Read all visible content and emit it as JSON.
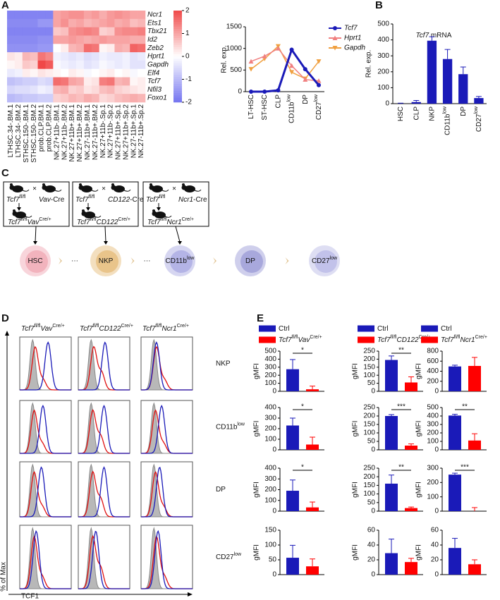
{
  "panel_labels": [
    "A",
    "B",
    "C",
    "D",
    "E"
  ],
  "chart_data": [
    {
      "type": "heatmap",
      "rows": [
        "Ncr1",
        "Ets1",
        "Tbx21",
        "Id2",
        "Zeb2",
        "Hprt1",
        "Gapdh",
        "Elf4",
        "Tcf7",
        "Nfil3",
        "Foxo1"
      ],
      "columns": [
        "LTHSC.34-.BM.1",
        "LTHSC.34-.BM.2",
        "STHSC.150-.BM.1",
        "STHSC.150-.BM.2",
        "prob.CLP.BM.1",
        "prob.CLP.BM.2",
        "NK.27+11b-.BM.1",
        "NK.27+11b-.BM.2",
        "NK.27+11b+.BM.1",
        "NK.27+11b+.BM.2",
        "NK.27-11b+.BM.1",
        "NK.27-11b+.BM.2",
        "NK.27+11b-.Sp.1",
        "NK.27+11b-.Sp.2",
        "NK.27+11b+.Sp.1",
        "NK.27+11b+.Sp.2",
        "NK.27-11b+.Sp.1",
        "NK.27-11b+.Sp.2"
      ],
      "values": [
        [
          -1.8,
          -1.8,
          -1.8,
          -1.8,
          -1.8,
          -1.8,
          1.0,
          1.1,
          1.2,
          1.2,
          1.0,
          1.1,
          0.9,
          1.1,
          1.2,
          1.1,
          1.0,
          1.0
        ],
        [
          -1.7,
          -1.7,
          -1.7,
          -1.7,
          -1.5,
          -1.5,
          1.0,
          1.2,
          0.9,
          1.0,
          0.8,
          0.9,
          1.0,
          1.1,
          0.9,
          1.0,
          0.7,
          0.8
        ],
        [
          -1.8,
          -1.8,
          -1.8,
          -1.8,
          -1.8,
          -1.8,
          0.6,
          0.7,
          1.2,
          1.3,
          1.4,
          1.3,
          0.5,
          0.6,
          1.2,
          1.3,
          1.3,
          1.4
        ],
        [
          -1.7,
          -1.7,
          -1.7,
          -1.7,
          -1.6,
          -1.6,
          1.0,
          1.0,
          1.1,
          1.0,
          0.9,
          1.0,
          1.1,
          1.0,
          1.0,
          1.0,
          0.9,
          0.9
        ],
        [
          -1.6,
          -1.6,
          -1.6,
          -1.6,
          -1.5,
          -1.5,
          0.0,
          0.2,
          0.8,
          0.9,
          1.6,
          1.5,
          0.1,
          0.2,
          0.9,
          0.8,
          1.7,
          1.6
        ],
        [
          0.3,
          0.2,
          0.8,
          0.7,
          1.5,
          1.3,
          -0.2,
          -0.3,
          -0.4,
          -0.3,
          -0.5,
          -0.4,
          -0.2,
          -0.3,
          -0.3,
          -0.2,
          -0.4,
          -0.3
        ],
        [
          0.1,
          0.2,
          0.6,
          0.5,
          2.0,
          1.8,
          -0.1,
          -0.2,
          -0.3,
          -0.2,
          -0.4,
          -0.3,
          -0.1,
          -0.2,
          -0.3,
          -0.2,
          -0.4,
          -0.4
        ],
        [
          -0.3,
          -0.2,
          0.2,
          0.1,
          0.3,
          0.2,
          0.1,
          0.0,
          0.2,
          0.1,
          -0.1,
          0.0,
          0.1,
          0.2,
          0.0,
          0.1,
          -0.1,
          0.0
        ],
        [
          -0.9,
          -0.8,
          -0.7,
          -0.7,
          -0.5,
          -0.6,
          1.6,
          1.5,
          1.0,
          0.9,
          0.2,
          0.3,
          1.4,
          1.5,
          0.8,
          0.9,
          0.1,
          0.2
        ],
        [
          -0.6,
          -0.5,
          -0.5,
          -0.4,
          -0.2,
          -0.3,
          0.8,
          0.9,
          0.5,
          0.6,
          0.3,
          0.4,
          0.7,
          0.8,
          0.5,
          0.4,
          0.3,
          0.2
        ],
        [
          -1.0,
          -0.9,
          -0.8,
          -0.8,
          -0.7,
          -0.7,
          0.5,
          0.6,
          0.8,
          0.7,
          0.9,
          0.8,
          0.4,
          0.5,
          0.7,
          0.8,
          0.9,
          0.8
        ]
      ],
      "zlim": [
        -2,
        2
      ],
      "colorbar_ticks": [
        2,
        1,
        0,
        -1,
        -2
      ],
      "colors": [
        "#7575f0",
        "#ffffff",
        "#f04848"
      ]
    },
    {
      "type": "line",
      "ylabel": "Rel. exp.",
      "categories": [
        "LT-HSC",
        "ST-HSC",
        "CLP",
        "CD11b",
        "DP",
        "CD27"
      ],
      "category_superscripts": [
        null,
        null,
        null,
        "low",
        null,
        "low"
      ],
      "ylim": [
        0,
        1500
      ],
      "yticks": [
        0,
        500,
        1000,
        1500
      ],
      "series": [
        {
          "name": "Tcf7",
          "color": "#1a1ab8",
          "marker": "circle",
          "values": [
            0,
            0,
            30,
            970,
            520,
            150
          ]
        },
        {
          "name": "Hprt1",
          "color": "#f08080",
          "marker": "triangle",
          "values": [
            700,
            820,
            1000,
            600,
            280,
            250
          ]
        },
        {
          "name": "Gapdh",
          "color": "#f0a040",
          "marker": "triangle-down",
          "values": [
            520,
            760,
            1050,
            450,
            300,
            700
          ]
        }
      ]
    },
    {
      "type": "bar",
      "title": [
        [
          "Tcf7",
          "i"
        ],
        [
          " mRNA",
          ""
        ]
      ],
      "ylabel": "Rel. exp.",
      "categories": [
        "HSC",
        "CLP",
        "NKP",
        "CD11b",
        "DP",
        "CD27"
      ],
      "category_superscripts": [
        null,
        null,
        null,
        "low",
        null,
        "low"
      ],
      "values": [
        0,
        10,
        395,
        280,
        185,
        35
      ],
      "errors": [
        3,
        10,
        25,
        60,
        45,
        10
      ],
      "color": "#1a1ab8",
      "ylim": [
        0,
        500
      ],
      "yticks": [
        0,
        100,
        200,
        300,
        400,
        500
      ]
    },
    {
      "type": "bar_panels",
      "ylabel": "gMFI",
      "columns": [
        {
          "legend": [
            {
              "name": [
                [
                  "Ctrl",
                  ""
                ]
              ],
              "color": "#1a1ab8"
            },
            {
              "name": [
                [
                  "Tcf7",
                  "i"
                ],
                [
                  "fl/fl",
                  "sup"
                ],
                [
                  "Vav",
                  "i"
                ],
                [
                  "Cre/+",
                  "sup"
                ]
              ],
              "color": "#ff0000"
            }
          ],
          "rows": [
            {
              "ylim": [
                0,
                500
              ],
              "yticks": [
                0,
                100,
                200,
                300,
                400,
                500
              ],
              "values": [
                275,
                25
              ],
              "errors": [
                120,
                40
              ],
              "significance": "*"
            },
            {
              "ylim": [
                0,
                400
              ],
              "yticks": [
                0,
                100,
                200,
                300,
                400
              ],
              "values": [
                230,
                50
              ],
              "errors": [
                70,
                70
              ],
              "significance": "*"
            },
            {
              "ylim": [
                0,
                400
              ],
              "yticks": [
                0,
                100,
                200,
                300,
                400
              ],
              "values": [
                190,
                35
              ],
              "errors": [
                100,
                50
              ],
              "significance": "*"
            },
            {
              "ylim": [
                0,
                150
              ],
              "yticks": [
                0,
                50,
                100,
                150
              ],
              "values": [
                57,
                28
              ],
              "errors": [
                42,
                25
              ]
            }
          ]
        },
        {
          "legend": [
            {
              "name": [
                [
                  "Ctrl",
                  ""
                ]
              ],
              "color": "#1a1ab8"
            },
            {
              "name": [
                [
                  "Tcf7",
                  "i"
                ],
                [
                  "fl/fl",
                  "sup"
                ],
                [
                  "CD122",
                  "i"
                ],
                [
                  "Cre/+",
                  "sup"
                ]
              ],
              "color": "#ff0000"
            }
          ],
          "rows": [
            {
              "ylim": [
                0,
                250
              ],
              "yticks": [
                0,
                50,
                100,
                150,
                200,
                250
              ],
              "values": [
                195,
                55
              ],
              "errors": [
                25,
                35
              ],
              "significance": "**"
            },
            {
              "ylim": [
                0,
                250
              ],
              "yticks": [
                0,
                50,
                100,
                150,
                200,
                250
              ],
              "values": [
                200,
                25
              ],
              "errors": [
                8,
                10
              ],
              "significance": "***"
            },
            {
              "ylim": [
                0,
                250
              ],
              "yticks": [
                0,
                50,
                100,
                150,
                200,
                250
              ],
              "values": [
                160,
                18
              ],
              "errors": [
                50,
                6
              ],
              "significance": "**"
            },
            {
              "ylim": [
                0,
                60
              ],
              "yticks": [
                0,
                20,
                40,
                60
              ],
              "values": [
                29,
                17
              ],
              "errors": [
                19,
                5
              ]
            }
          ]
        },
        {
          "legend": [
            {
              "name": [
                [
                  "Ctrl",
                  ""
                ]
              ],
              "color": "#1a1ab8"
            },
            {
              "name": [
                [
                  "Tcf7",
                  "i"
                ],
                [
                  "fl/fl",
                  "sup"
                ],
                [
                  "Ncr1",
                  "i"
                ],
                [
                  "Cre/+",
                  "sup"
                ]
              ],
              "color": "#ff0000"
            }
          ],
          "rows": [
            {
              "ylim": [
                0,
                800
              ],
              "yticks": [
                0,
                200,
                400,
                600,
                800
              ],
              "values": [
                495,
                505
              ],
              "errors": [
                25,
                170
              ]
            },
            {
              "ylim": [
                0,
                500
              ],
              "yticks": [
                0,
                100,
                200,
                300,
                400,
                500
              ],
              "values": [
                405,
                110
              ],
              "errors": [
                15,
                80
              ],
              "significance": "**"
            },
            {
              "ylim": [
                0,
                300
              ],
              "yticks": [
                0,
                100,
                200,
                300
              ],
              "values": [
                255,
                0
              ],
              "errors": [
                10,
                25
              ],
              "significance": "***"
            },
            {
              "ylim": [
                0,
                60
              ],
              "yticks": [
                0,
                20,
                40,
                60
              ],
              "values": [
                36,
                14
              ],
              "errors": [
                13,
                6
              ]
            }
          ]
        }
      ]
    }
  ],
  "diagram": {
    "cross": "×",
    "boxes": [
      {
        "left": [
          [
            "Tcf7",
            "i"
          ],
          [
            "fl/fl",
            "sup"
          ]
        ],
        "right": [
          [
            "Vav",
            "i"
          ],
          [
            "-Cre",
            ""
          ]
        ],
        "result": [
          [
            "Tcf7",
            "i"
          ],
          [
            "fl/fl",
            "sup"
          ],
          [
            "Vav",
            "i"
          ],
          [
            "Cre/+",
            "sup"
          ]
        ]
      },
      {
        "left": [
          [
            "Tcf7",
            "i"
          ],
          [
            "fl/fl",
            "sup"
          ]
        ],
        "right": [
          [
            "CD122",
            "i"
          ],
          [
            "-Cre",
            ""
          ]
        ],
        "result": [
          [
            "Tcf7",
            "i"
          ],
          [
            "fl/fl",
            "sup"
          ],
          [
            "CD122",
            "i"
          ],
          [
            "Cre/+",
            "sup"
          ]
        ]
      },
      {
        "left": [
          [
            "Tcf7",
            "i"
          ],
          [
            "fl/fl",
            "sup"
          ]
        ],
        "right": [
          [
            "Ncr1",
            "i"
          ],
          [
            "-Cre",
            ""
          ]
        ],
        "result": [
          [
            "Tcf7",
            "i"
          ],
          [
            "fl/fl",
            "sup"
          ],
          [
            "Ncr1",
            "i"
          ],
          [
            "Cre/+",
            "sup"
          ]
        ]
      }
    ],
    "cells": [
      {
        "label": [
          [
            "HSC",
            ""
          ]
        ],
        "color": "#f2b3bd"
      },
      {
        "label": [
          [
            "NKP",
            ""
          ]
        ],
        "color": "#e9c48a"
      },
      {
        "label": [
          [
            "CD11b",
            ""
          ],
          [
            "low",
            "sup"
          ]
        ],
        "color": "#b4b4e6"
      },
      {
        "label": [
          [
            "DP",
            ""
          ]
        ],
        "color": "#a8a8dc"
      },
      {
        "label": [
          [
            "CD27",
            ""
          ],
          [
            "low",
            "sup"
          ]
        ],
        "color": "#c2c2ea"
      }
    ],
    "ellipsis": "···"
  },
  "histograms": {
    "headers": [
      [
        [
          "Tcf7",
          "i"
        ],
        [
          "fl/fl",
          "sup"
        ],
        [
          "Vav",
          "i"
        ],
        [
          "Cre/+",
          "sup"
        ]
      ],
      [
        [
          "Tcf7",
          "i"
        ],
        [
          "fl/fl",
          "sup"
        ],
        [
          "CD122",
          "i"
        ],
        [
          "Cre/+",
          "sup"
        ]
      ],
      [
        [
          "Tcf7",
          "i"
        ],
        [
          "fl/fl",
          "sup"
        ],
        [
          "Ncr1",
          "i"
        ],
        [
          "Cre/+",
          "sup"
        ]
      ]
    ],
    "row_labels": [
      [
        [
          "NKP",
          ""
        ]
      ],
      [
        [
          "CD11b",
          ""
        ],
        [
          "low",
          "sup"
        ]
      ],
      [
        [
          "DP",
          ""
        ]
      ],
      [
        [
          "CD27",
          ""
        ],
        [
          "low",
          "sup"
        ]
      ]
    ],
    "ylabel": "% of Max",
    "xlabel": "TCF1"
  }
}
